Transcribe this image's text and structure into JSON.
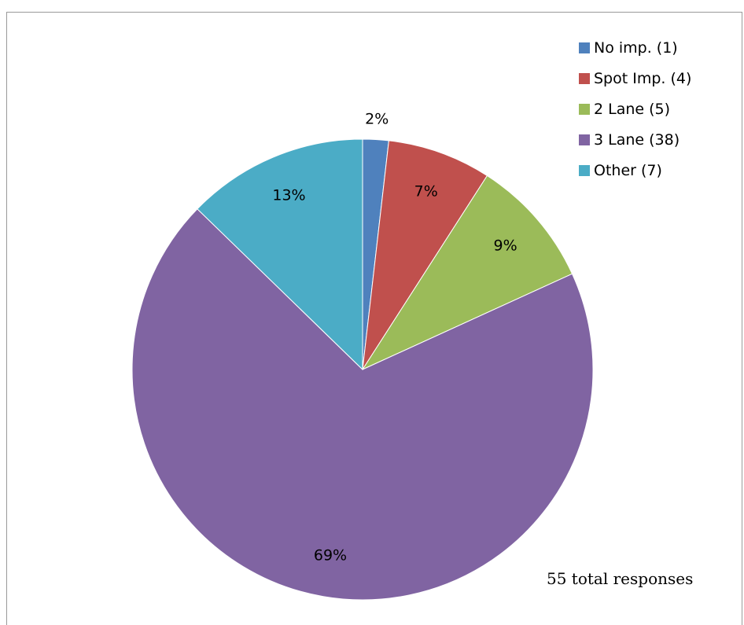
{
  "page": {
    "title": "",
    "note": "55 total responses"
  },
  "chart_data": {
    "type": "pie",
    "title": "",
    "total": 55,
    "slices": [
      {
        "name": "No imp. (1)",
        "count": 1,
        "percent_label": "2%",
        "color": "#4F81BD"
      },
      {
        "name": "Spot Imp. (4)",
        "count": 4,
        "percent_label": "7%",
        "color": "#C0504D"
      },
      {
        "name": "2 Lane (5)",
        "count": 5,
        "percent_label": "9%",
        "color": "#9BBB59"
      },
      {
        "name": "3 Lane (38)",
        "count": 38,
        "percent_label": "69%",
        "color": "#8064A2"
      },
      {
        "name": "Other (7)",
        "count": 7,
        "percent_label": "13%",
        "color": "#4BACC6"
      }
    ],
    "legend_position": "top-right"
  }
}
